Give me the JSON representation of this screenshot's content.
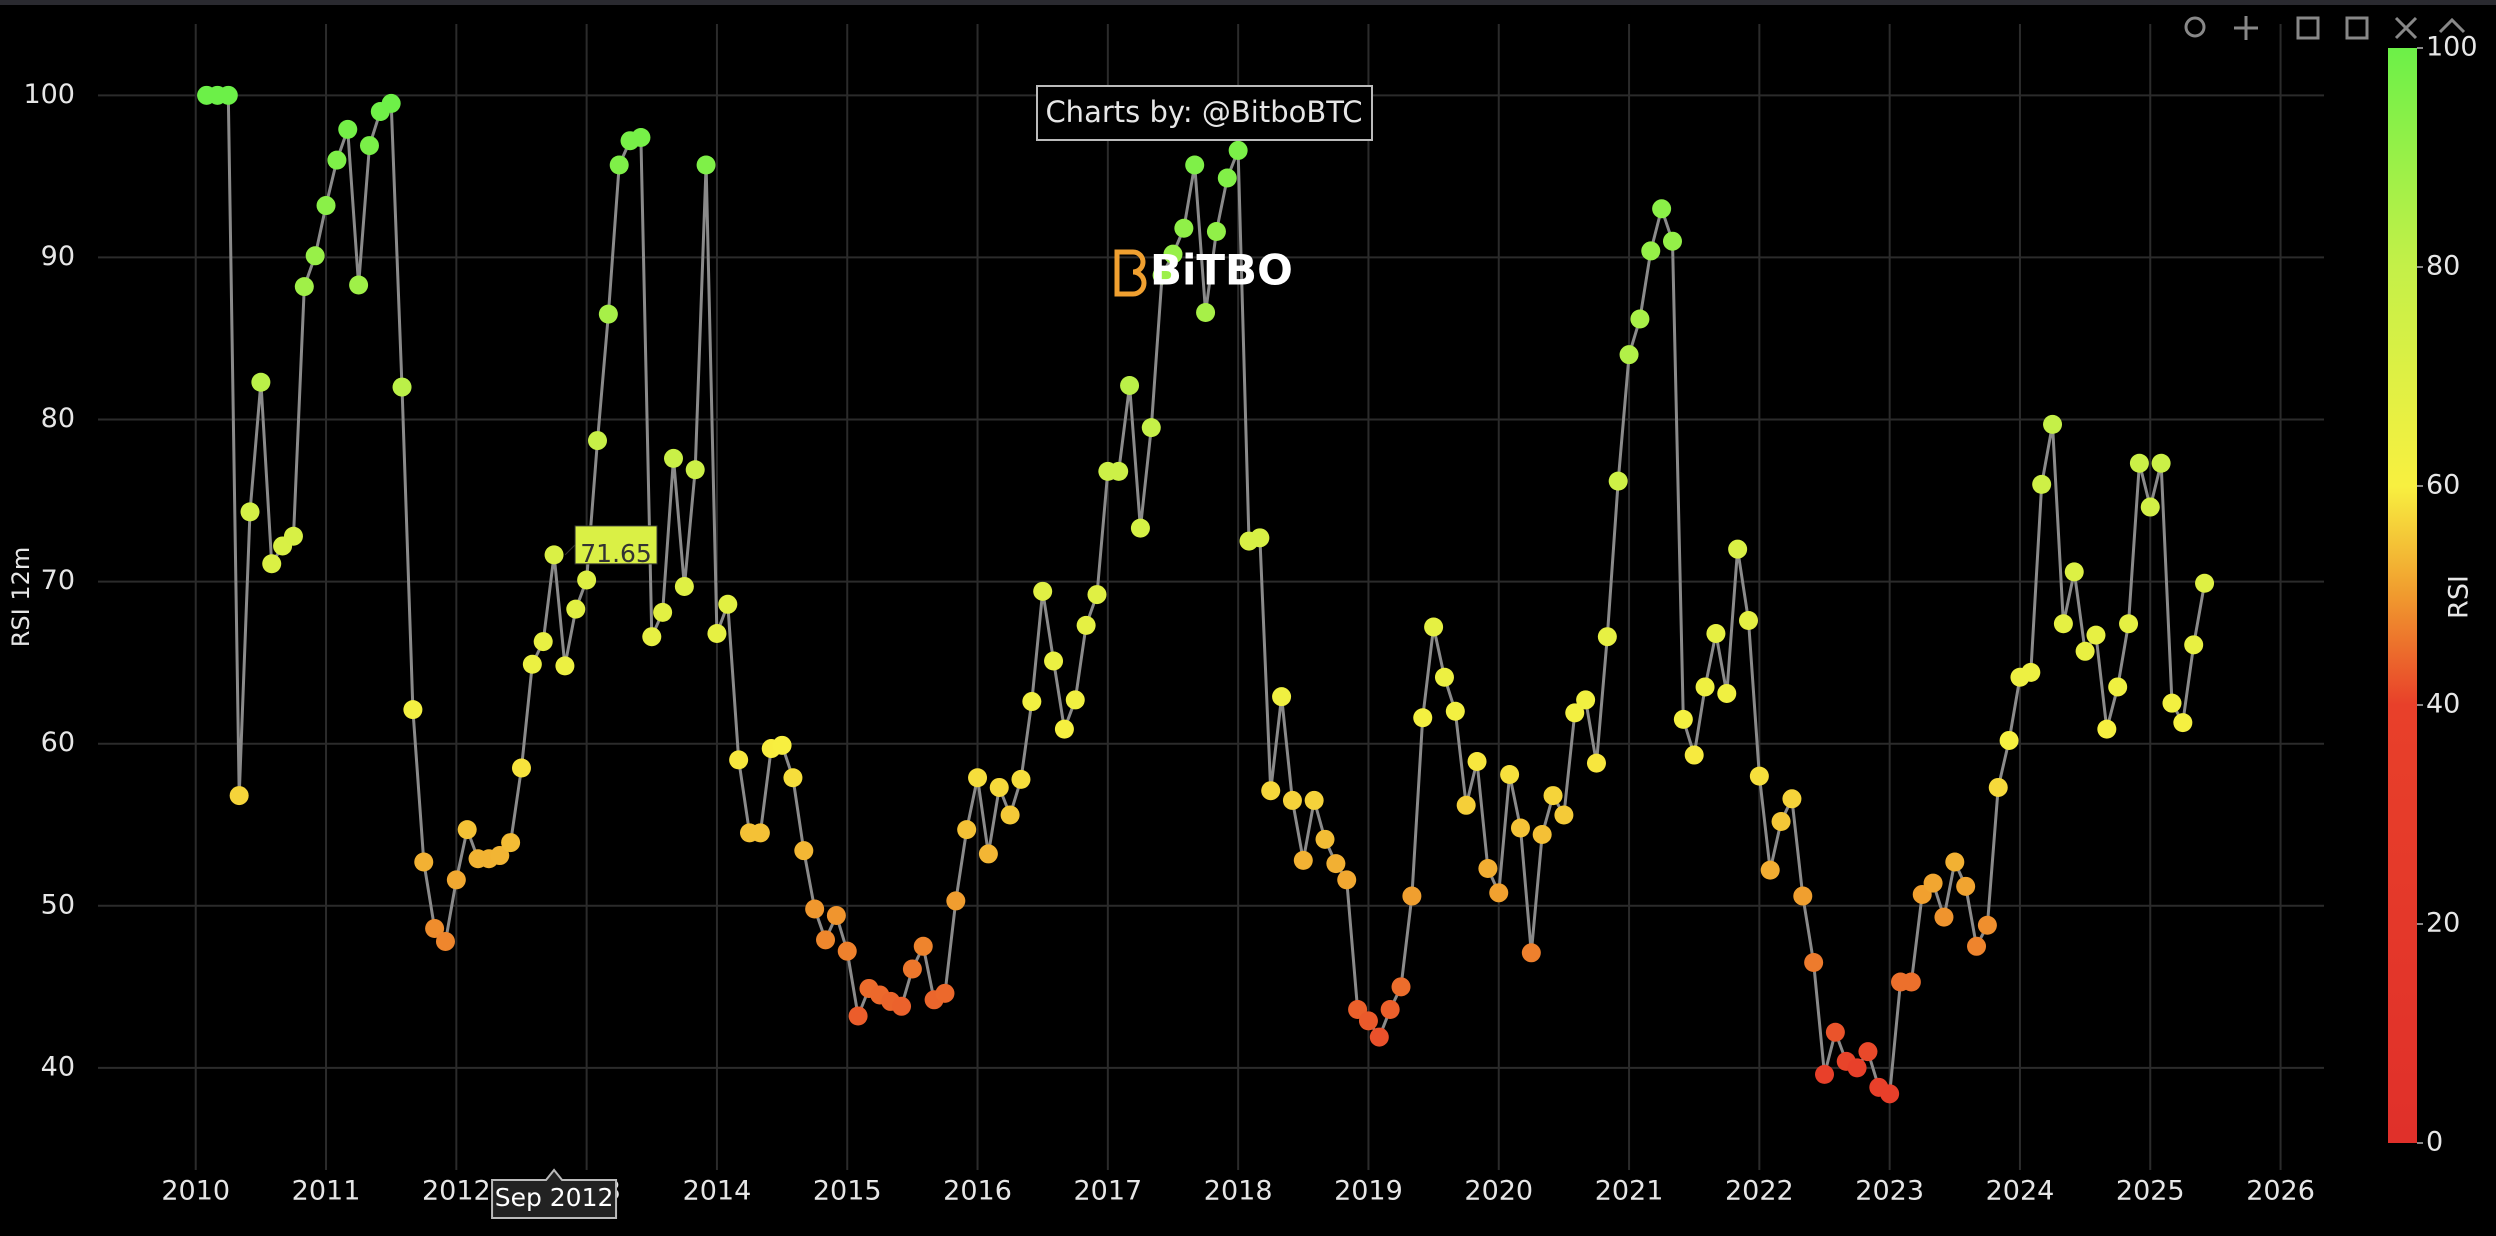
{
  "chart_data": {
    "type": "line",
    "y_label": "RSI 12m",
    "annotation": "Charts by: @BitboBTC",
    "logo": "BiTBO",
    "x": [
      "2010-01",
      "2010-02",
      "2010-03",
      "2010-04",
      "2010-05",
      "2010-06",
      "2010-07",
      "2010-08",
      "2010-09",
      "2010-10",
      "2010-11",
      "2010-12",
      "2011-01",
      "2011-02",
      "2011-03",
      "2011-04",
      "2011-05",
      "2011-06",
      "2011-07",
      "2011-08",
      "2011-09",
      "2011-10",
      "2011-11",
      "2011-12",
      "2012-01",
      "2012-02",
      "2012-03",
      "2012-04",
      "2012-05",
      "2012-06",
      "2012-07",
      "2012-08",
      "2012-09",
      "2012-10",
      "2012-11",
      "2012-12",
      "2013-01",
      "2013-02",
      "2013-03",
      "2013-04",
      "2013-05",
      "2013-06",
      "2013-07",
      "2013-08",
      "2013-09",
      "2013-10",
      "2013-11",
      "2013-12",
      "2014-01",
      "2014-02",
      "2014-03",
      "2014-04",
      "2014-05",
      "2014-06",
      "2014-07",
      "2014-08",
      "2014-09",
      "2014-10",
      "2014-11",
      "2014-12",
      "2015-01",
      "2015-02",
      "2015-03",
      "2015-04",
      "2015-05",
      "2015-06",
      "2015-07",
      "2015-08",
      "2015-09",
      "2015-10",
      "2015-11",
      "2015-12",
      "2016-01",
      "2016-02",
      "2016-03",
      "2016-04",
      "2016-05",
      "2016-06",
      "2016-07",
      "2016-08",
      "2016-09",
      "2016-10",
      "2016-11",
      "2016-12",
      "2017-01",
      "2017-02",
      "2017-03",
      "2017-04",
      "2017-05",
      "2017-06",
      "2017-07",
      "2017-08",
      "2017-09",
      "2017-10",
      "2017-11",
      "2017-12",
      "2018-01",
      "2018-02",
      "2018-03",
      "2018-04",
      "2018-05",
      "2018-06",
      "2018-07",
      "2018-08",
      "2018-09",
      "2018-10",
      "2018-11",
      "2018-12",
      "2019-01",
      "2019-02",
      "2019-03",
      "2019-04",
      "2019-05",
      "2019-06",
      "2019-07",
      "2019-08",
      "2019-09",
      "2019-10",
      "2019-11",
      "2019-12",
      "2020-01",
      "2020-02",
      "2020-03",
      "2020-04",
      "2020-05",
      "2020-06",
      "2020-07",
      "2020-08",
      "2020-09",
      "2020-10",
      "2020-11",
      "2020-12",
      "2021-01",
      "2021-02",
      "2021-03",
      "2021-04",
      "2021-05",
      "2021-06",
      "2021-07",
      "2021-08",
      "2021-09",
      "2021-10",
      "2021-11",
      "2021-12",
      "2022-01",
      "2022-02",
      "2022-03",
      "2022-04",
      "2022-05",
      "2022-06",
      "2022-07",
      "2022-08",
      "2022-09",
      "2022-10",
      "2022-11",
      "2022-12",
      "2023-01",
      "2023-02",
      "2023-03",
      "2023-04",
      "2023-05",
      "2023-06",
      "2023-07",
      "2023-08",
      "2023-09",
      "2023-10",
      "2023-11",
      "2023-12",
      "2024-01",
      "2024-02",
      "2024-03",
      "2024-04",
      "2024-05",
      "2024-06",
      "2024-07",
      "2024-08",
      "2024-09",
      "2024-10",
      "2024-11",
      "2024-12",
      "2025-01",
      "2025-02",
      "2025-03",
      "2025-04",
      "2025-05"
    ],
    "values": [
      100,
      100,
      100,
      56.8,
      74.3,
      82.3,
      71.1,
      72.2,
      72.8,
      88.2,
      90.1,
      93.2,
      96,
      97.9,
      88.3,
      96.9,
      99,
      99.5,
      82,
      62.1,
      52.7,
      48.6,
      47.8,
      51.6,
      54.7,
      52.9,
      52.9,
      53.1,
      53.9,
      58.5,
      64.9,
      66.3,
      71.65,
      64.8,
      68.3,
      70.1,
      78.7,
      86.5,
      95.7,
      97.2,
      97.4,
      66.6,
      68.1,
      77.6,
      69.7,
      76.9,
      95.7,
      66.8,
      68.6,
      59,
      54.5,
      54.5,
      59.7,
      59.9,
      57.9,
      53.4,
      49.8,
      47.9,
      49.4,
      47.2,
      43.2,
      44.9,
      44.5,
      44.1,
      43.8,
      46.1,
      47.5,
      44.2,
      44.6,
      50.3,
      54.7,
      57.9,
      53.2,
      57.3,
      55.6,
      57.8,
      62.6,
      69.4,
      65.1,
      60.9,
      62.7,
      67.3,
      69.2,
      76.8,
      76.8,
      82.1,
      73.3,
      79.5,
      88.9,
      90.2,
      91.8,
      95.7,
      86.6,
      91.6,
      94.9,
      96.6,
      72.5,
      72.7,
      57.1,
      62.9,
      56.5,
      52.8,
      56.5,
      54.1,
      52.6,
      51.6,
      43.6,
      42.9,
      41.9,
      43.6,
      45,
      50.6,
      61.6,
      67.2,
      64.1,
      62,
      56.2,
      58.9,
      52.3,
      50.8,
      58.1,
      54.8,
      47.1,
      54.4,
      56.8,
      55.6,
      61.9,
      62.7,
      58.8,
      66.6,
      76.2,
      84,
      86.2,
      90.4,
      93,
      91,
      61.5,
      59.3,
      63.5,
      66.8,
      63.1,
      72,
      67.6,
      58,
      52.2,
      55.2,
      56.6,
      50.6,
      46.5,
      39.6,
      42.2,
      40.4,
      40,
      41,
      38.8,
      38.4,
      45.3,
      45.3,
      50.7,
      51.4,
      49.3,
      52.7,
      51.2,
      47.5,
      48.8,
      57.3,
      60.2,
      64.1,
      64.4,
      76,
      79.7,
      67.4,
      70.6,
      65.7,
      66.7,
      60.9,
      63.5,
      67.4,
      77.3,
      74.6,
      77.3,
      62.5,
      61.3,
      66.1,
      69.9
    ],
    "line_color": "#8a8a8a",
    "xlim": [
      "2009-03",
      "2026-04"
    ],
    "xticks": [
      "2010",
      "2011",
      "2012",
      "2013",
      "2014",
      "2015",
      "2016",
      "2017",
      "2018",
      "2019",
      "2020",
      "2021",
      "2022",
      "2023",
      "2024",
      "2025",
      "2026"
    ],
    "ylim": [
      33.7,
      104.4
    ],
    "yticks": [
      40,
      50,
      60,
      70,
      80,
      90,
      100
    ],
    "grid": true,
    "colorbar": {
      "title": "RSI",
      "clim": [
        0,
        100
      ],
      "ticks": [
        0,
        20,
        40,
        60,
        80,
        100
      ],
      "colorscale": [
        [
          0,
          "#e0302a"
        ],
        [
          40,
          "#e8402a"
        ],
        [
          50,
          "#f09a2e"
        ],
        [
          60,
          "#f8f040"
        ],
        [
          80,
          "#c4f048"
        ],
        [
          100,
          "#6cf048"
        ]
      ]
    },
    "hover": {
      "x": "2012-09",
      "label": "Sep 2012"
    }
  }
}
